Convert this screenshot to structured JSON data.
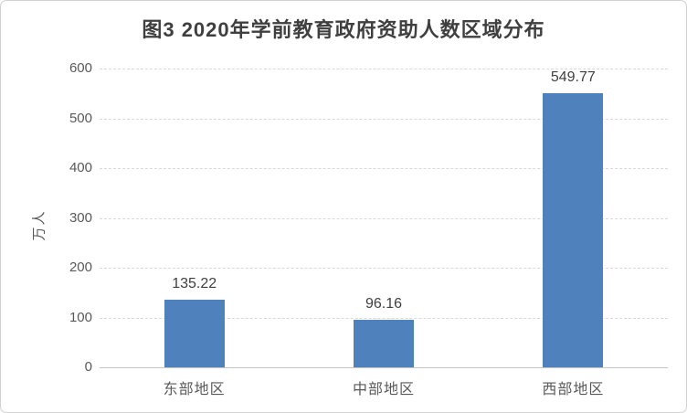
{
  "chart_data": {
    "type": "bar",
    "title": "图3 2020年学前教育政府资助人数区域分布",
    "categories": [
      "东部地区",
      "中部地区",
      "西部地区"
    ],
    "values": [
      135.22,
      96.16,
      549.77
    ],
    "data_labels": [
      "135.22",
      "96.16",
      "549.77"
    ],
    "xlabel": "",
    "ylabel": "万人",
    "ylim": [
      0,
      600
    ],
    "yticks": [
      0,
      100,
      200,
      300,
      400,
      500,
      600
    ],
    "grid": true,
    "legend_position": "none",
    "colors": {
      "bar": "#4f81bd",
      "gridline": "#d9d9d9",
      "axis_line": "#c6c6c6",
      "tick_label": "#595959",
      "title": "#3f3f3f",
      "data_label": "#404040",
      "frame_border": "#d2d2d2",
      "background": "#ffffff"
    }
  }
}
